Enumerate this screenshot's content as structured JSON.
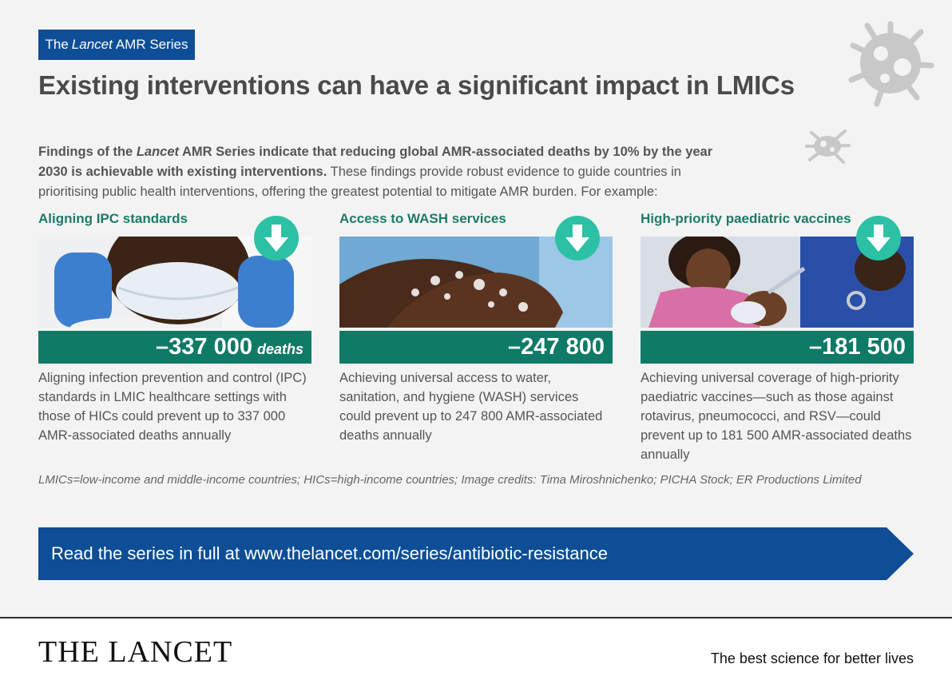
{
  "series_tag": {
    "prefix": "The",
    "journal": "Lancet",
    "suffix": "AMR Series"
  },
  "headline": "Existing interventions can have a significant impact in LMICs",
  "intro": {
    "bold_prefix": "Findings of the",
    "bold_journal": "Lancet",
    "bold_suffix": "AMR Series indicate that reducing global AMR-associated deaths by 10% by the year 2030 is achievable with existing interventions.",
    "body": "These findings provide robust evidence to guide countries in prioritising public health interventions, offering the greatest potential to mitigate AMR burden. For example:"
  },
  "interventions": [
    {
      "title": "Aligning IPC standards",
      "stat": "–337 000",
      "unit": "deaths",
      "description": "Aligning infection prevention and control (IPC) standards in LMIC healthcare settings with those of HICs could prevent up to 337 000 AMR-associated deaths annually",
      "icon": "down-arrow-icon"
    },
    {
      "title": "Access to WASH services",
      "stat": "–247 800",
      "description": "Achieving universal access to water, sanitation, and hygiene (WASH) services could prevent up to 247 800 AMR-associated deaths annually",
      "icon": "down-arrow-icon"
    },
    {
      "title": "High-priority paediatric vaccines",
      "stat": "–181 500",
      "description": "Achieving universal coverage of high-priority paediatric vaccines—such as those against rotavirus, pneumococci, and RSV—could prevent up to 181 500 AMR-associated deaths annually",
      "icon": "down-arrow-icon"
    }
  ],
  "footnote": "LMICs=low-income and middle-income countries; HICs=high-income countries; Image credits: Tima Miroshnichenko; PICHA Stock; ER Productions Limited",
  "cta": "Read the series in full at www.thelancet.com/series/antibiotic-resistance",
  "footer": {
    "brand": "THE LANCET",
    "tagline": "The best science for better lives"
  },
  "colors": {
    "navy": "#0d4e96",
    "teal": "#0f7a66",
    "badge": "#2cc1a4",
    "title_green": "#1e7a6a"
  }
}
